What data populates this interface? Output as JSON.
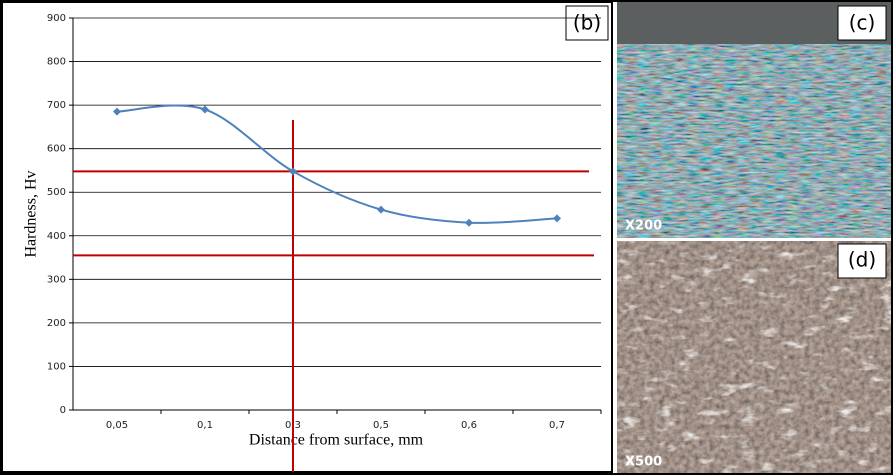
{
  "chart_data": {
    "type": "line",
    "panel_label": "(b)",
    "x_label": "Distance from surface, mm",
    "y_label": "Hardness, Hv",
    "categories": [
      "0,05",
      "0,1",
      "0,3",
      "0,5",
      "0,6",
      "0,7"
    ],
    "values": [
      685,
      690,
      548,
      460,
      430,
      440
    ],
    "color": "#4f81bd",
    "ylim": [
      0,
      900
    ],
    "yticks": [
      0,
      100,
      200,
      300,
      400,
      500,
      600,
      700,
      800,
      900
    ],
    "grid": true,
    "reference_lines": {
      "y": [
        548,
        355
      ],
      "x": [
        "0,3"
      ],
      "color": "#c00000"
    }
  },
  "micrographs": [
    {
      "label": "(c)",
      "magnification": "X200"
    },
    {
      "label": "(d)",
      "magnification": "X500"
    }
  ]
}
